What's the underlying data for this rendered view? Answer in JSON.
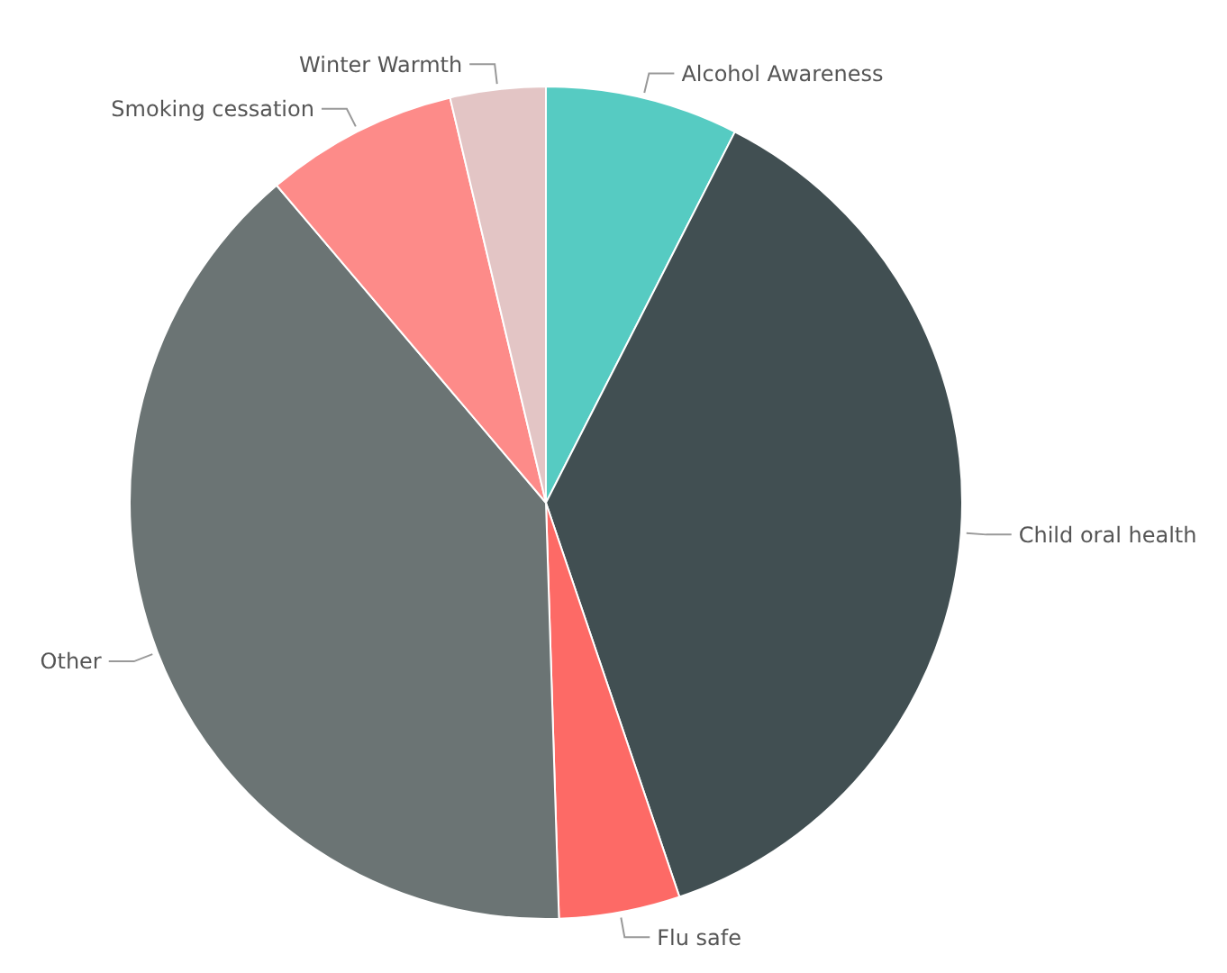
{
  "chart_data": {
    "type": "pie",
    "categories": [
      "Alcohol Awareness",
      "Child oral health",
      "Flu safe",
      "Other",
      "Smoking cessation",
      "Winter Warmth"
    ],
    "values": [
      7.5,
      37.3,
      4.7,
      39.3,
      7.5,
      3.7
    ],
    "colors": [
      "#56cbc2",
      "#414f52",
      "#fd6a66",
      "#6b7474",
      "#fd8b89",
      "#e3c5c5"
    ]
  }
}
